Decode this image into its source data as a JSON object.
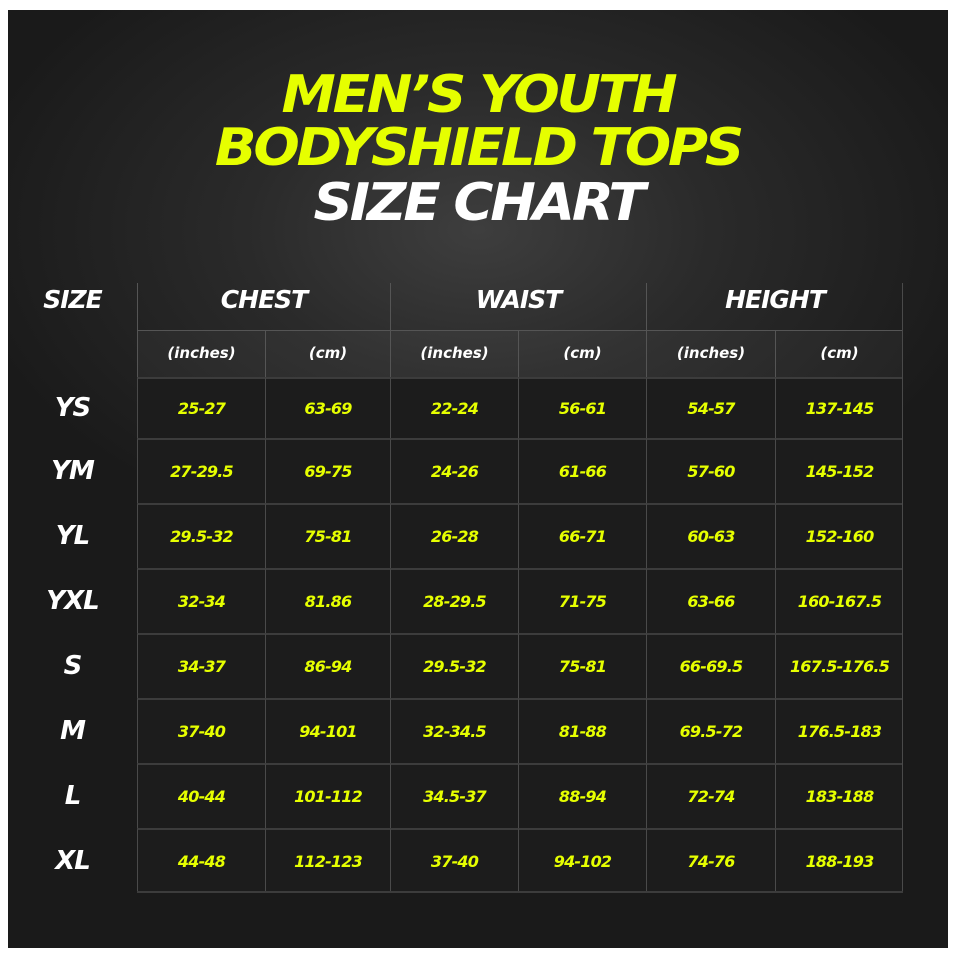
{
  "title": {
    "line1": "MEN’S YOUTH",
    "line2": "BODYSHIELD TOPS",
    "line3": "SIZE CHART"
  },
  "colors": {
    "accent": "#e6ff00",
    "background": "#1c1c1c",
    "text": "#ffffff"
  },
  "table": {
    "size_header": "SIZE",
    "groups": [
      "CHEST",
      "WAIST",
      "HEIGHT"
    ],
    "units": [
      "(inches)",
      "(cm)",
      "(inches)",
      "(cm)",
      "(inches)",
      "(cm)"
    ],
    "rows": [
      {
        "size": "YS",
        "values": [
          "25-27",
          "63-69",
          "22-24",
          "56-61",
          "54-57",
          "137-145"
        ]
      },
      {
        "size": "YM",
        "values": [
          "27-29.5",
          "69-75",
          "24-26",
          "61-66",
          "57-60",
          "145-152"
        ]
      },
      {
        "size": "YL",
        "values": [
          "29.5-32",
          "75-81",
          "26-28",
          "66-71",
          "60-63",
          "152-160"
        ]
      },
      {
        "size": "YXL",
        "values": [
          "32-34",
          "81.86",
          "28-29.5",
          "71-75",
          "63-66",
          "160-167.5"
        ]
      },
      {
        "size": "S",
        "values": [
          "34-37",
          "86-94",
          "29.5-32",
          "75-81",
          "66-69.5",
          "167.5-176.5"
        ]
      },
      {
        "size": "M",
        "values": [
          "37-40",
          "94-101",
          "32-34.5",
          "81-88",
          "69.5-72",
          "176.5-183"
        ]
      },
      {
        "size": "L",
        "values": [
          "40-44",
          "101-112",
          "34.5-37",
          "88-94",
          "72-74",
          "183-188"
        ]
      },
      {
        "size": "XL",
        "values": [
          "44-48",
          "112-123",
          "37-40",
          "94-102",
          "74-76",
          "188-193"
        ]
      }
    ]
  }
}
